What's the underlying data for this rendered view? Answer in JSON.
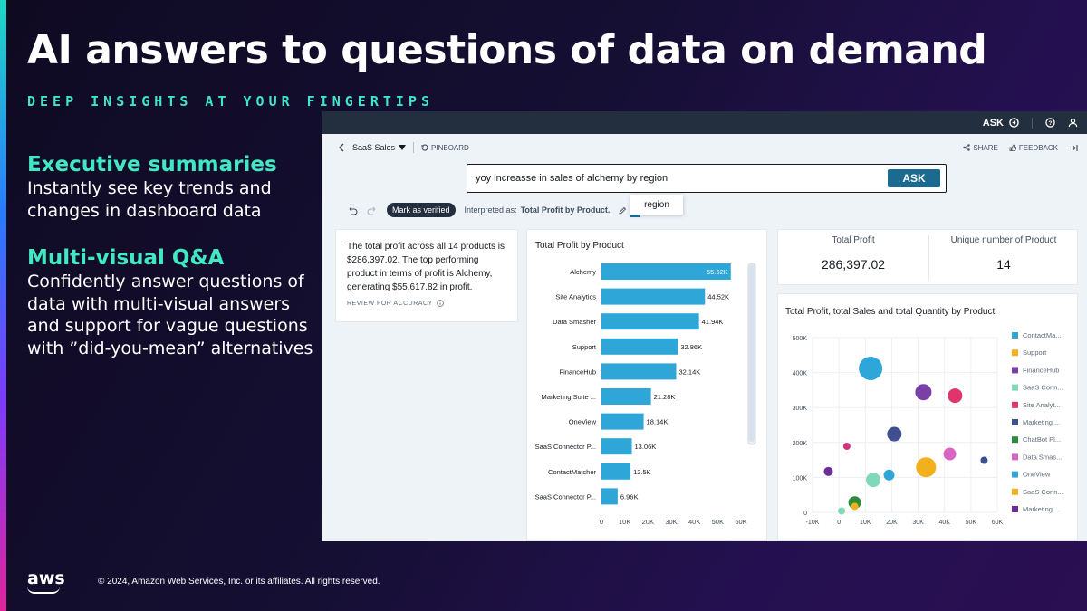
{
  "slide": {
    "title": "AI answers to questions of data on demand",
    "subtitle": "DEEP INSIGHTS AT YOUR FINGERTIPS",
    "bullets": [
      {
        "heading": "Executive summaries",
        "body": "Instantly see key trends and changes in dashboard data"
      },
      {
        "heading": "Multi-visual Q&A",
        "body": "Confidently answer questions of data with multi-visual answers and support for vague questions with ”did-you-mean” alternatives"
      }
    ],
    "footer": {
      "logo": "aws",
      "copyright": "© 2024, Amazon Web Services, Inc. or its affiliates. All rights reserved."
    }
  },
  "app": {
    "topbar": {
      "ask_label": "ASK"
    },
    "toolbar": {
      "analysis": "SaaS Sales",
      "pinboard": "PINBOARD",
      "share": "SHARE",
      "feedback": "FEEDBACK"
    },
    "query": {
      "text": "yoy increasse in sales of alchemy by region",
      "ask_button": "ASK",
      "suggestion": "region"
    },
    "interpretation": {
      "verified_badge": "Mark as verified",
      "prefix": "Interpreted as:",
      "value": "Total Profit by Product."
    },
    "summary": {
      "text": "The total profit across all 14 products is $286,397.02. The top performing product in terms of profit is Alchemy, generating $55,617.82 in profit.",
      "review": "REVIEW FOR ACCURACY"
    },
    "kpis": [
      {
        "label": "Total Profit",
        "value": "286,397.02"
      },
      {
        "label": "Unique number of Product",
        "value": "14"
      }
    ]
  },
  "chart_data": [
    {
      "type": "bar",
      "orientation": "horizontal",
      "title": "Total Profit by Product",
      "categories": [
        "Alchemy",
        "Site Analytics",
        "Data Smasher",
        "Support",
        "FinanceHub",
        "Marketing Suite ...",
        "OneView",
        "SaaS Connector P...",
        "ContactMatcher",
        "SaaS Connector P..."
      ],
      "values": [
        55.62,
        44.52,
        41.94,
        32.86,
        32.14,
        21.28,
        18.14,
        13.06,
        12.5,
        6.96
      ],
      "value_labels": [
        "55.62K",
        "44.52K",
        "41.94K",
        "32.86K",
        "32.14K",
        "21.28K",
        "18.14K",
        "13.06K",
        "12.5K",
        "6.96K"
      ],
      "xticks": [
        "0",
        "10K",
        "20K",
        "30K",
        "40K",
        "50K",
        "60K"
      ],
      "xlim": [
        0,
        60
      ],
      "color": "#2ea6d8"
    },
    {
      "type": "scatter",
      "title": "Total Profit, total Sales and total Quantity by Product",
      "xticks": [
        "-10K",
        "0",
        "10K",
        "20K",
        "30K",
        "40K",
        "50K",
        "60K"
      ],
      "yticks": [
        "0",
        "100K",
        "200K",
        "300K",
        "400K",
        "500K"
      ],
      "xlim": [
        -10,
        60
      ],
      "ylim": [
        0,
        500
      ],
      "points": [
        {
          "x": 12,
          "y": 412,
          "size": 13,
          "color": "#2ea6d8"
        },
        {
          "x": 32,
          "y": 344,
          "size": 9,
          "color": "#7b3fa8"
        },
        {
          "x": 44,
          "y": 334,
          "size": 8,
          "color": "#e0346b"
        },
        {
          "x": 21,
          "y": 224,
          "size": 8,
          "color": "#3f4f8f"
        },
        {
          "x": 3,
          "y": 189,
          "size": 4,
          "color": "#d6337a"
        },
        {
          "x": 42,
          "y": 167,
          "size": 7,
          "color": "#d865c3"
        },
        {
          "x": 33,
          "y": 129,
          "size": 11,
          "color": "#f2b11c"
        },
        {
          "x": 55,
          "y": 149,
          "size": 4,
          "color": "#3f4f8f"
        },
        {
          "x": -4,
          "y": 117,
          "size": 5,
          "color": "#6a2d9a"
        },
        {
          "x": 19,
          "y": 107,
          "size": 6,
          "color": "#2ea6d8"
        },
        {
          "x": 13,
          "y": 93,
          "size": 8,
          "color": "#7fd8b8"
        },
        {
          "x": 6,
          "y": 28,
          "size": 7,
          "color": "#2e8b3a"
        },
        {
          "x": 6,
          "y": 17,
          "size": 4,
          "color": "#f2b11c"
        },
        {
          "x": 1,
          "y": 4,
          "size": 4,
          "color": "#7fd8b8"
        }
      ],
      "legend": [
        {
          "name": "ContactMa...",
          "color": "#2ea6d8"
        },
        {
          "name": "Support",
          "color": "#f2b11c"
        },
        {
          "name": "FinanceHub",
          "color": "#7b3fa8"
        },
        {
          "name": "SaaS Conn...",
          "color": "#7fd8b8"
        },
        {
          "name": "Site Analyt...",
          "color": "#e0346b"
        },
        {
          "name": "Marketing ...",
          "color": "#3f4f8f"
        },
        {
          "name": "ChatBot Pl...",
          "color": "#2e8b3a"
        },
        {
          "name": "Data Smas...",
          "color": "#d865c3"
        },
        {
          "name": "OneView",
          "color": "#2ea6d8"
        },
        {
          "name": "SaaS Conn...",
          "color": "#f2b11c"
        },
        {
          "name": "Marketing ...",
          "color": "#6a2d9a"
        }
      ]
    }
  ]
}
